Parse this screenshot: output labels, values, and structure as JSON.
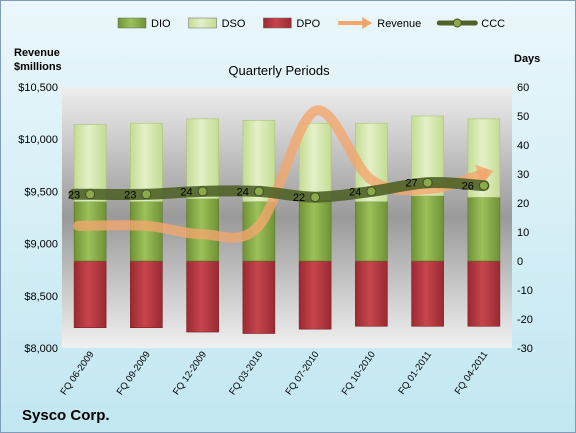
{
  "chart_data": {
    "type": "bar",
    "title": "Quarterly Periods",
    "company": "Sysco Corp.",
    "left_axis_title": [
      "Revenue",
      "$millions"
    ],
    "right_axis_title": "Days",
    "categories": [
      "FQ 06-2009",
      "FQ 09-2009",
      "FQ 12-2009",
      "FQ 03-2010",
      "FQ 07-2010",
      "FQ 10-2010",
      "FQ 01-2011",
      "FQ 04-2011"
    ],
    "left_ylim": [
      8000,
      10500
    ],
    "left_ticks": [
      "$8,000",
      "$8,500",
      "$9,000",
      "$9,500",
      "$10,000",
      "$10,500"
    ],
    "right_ylim": [
      -30,
      60
    ],
    "right_ticks": [
      "-30",
      "-20",
      "-10",
      "0",
      "10",
      "20",
      "30",
      "40",
      "50",
      "60"
    ],
    "series": [
      {
        "name": "DIO",
        "type": "stacked-bar",
        "values": [
          20.5,
          20.5,
          21.5,
          20.5,
          21,
          20.5,
          22.5,
          22
        ]
      },
      {
        "name": "DSO",
        "type": "stacked-bar",
        "values": [
          26.5,
          27,
          27.5,
          28,
          26.5,
          27,
          27.5,
          27
        ]
      },
      {
        "name": "DPO",
        "type": "stacked-bar",
        "values": [
          -23,
          -23,
          -24.5,
          -25,
          -23.5,
          -22.5,
          -22.5,
          -22.5
        ]
      },
      {
        "name": "Revenue",
        "type": "line",
        "axis": "left",
        "values": [
          9170,
          9170,
          9090,
          9170,
          10270,
          9610,
          9520,
          9670
        ]
      },
      {
        "name": "CCC",
        "type": "line",
        "axis": "right",
        "values": [
          23,
          23,
          24,
          24,
          22,
          24,
          27,
          26
        ],
        "labels": [
          "23",
          "23",
          "24",
          "24",
          "22",
          "24",
          "27",
          "26"
        ]
      }
    ],
    "colors": {
      "DIO": "#8cb14b",
      "DSO": "#d8eab3",
      "DPO": "#b8353d",
      "Revenue": "#f2a66e",
      "CCC": "#4f6228",
      "CCC_marker": "#8caa4a"
    },
    "legend_position": "top",
    "grid": false
  }
}
